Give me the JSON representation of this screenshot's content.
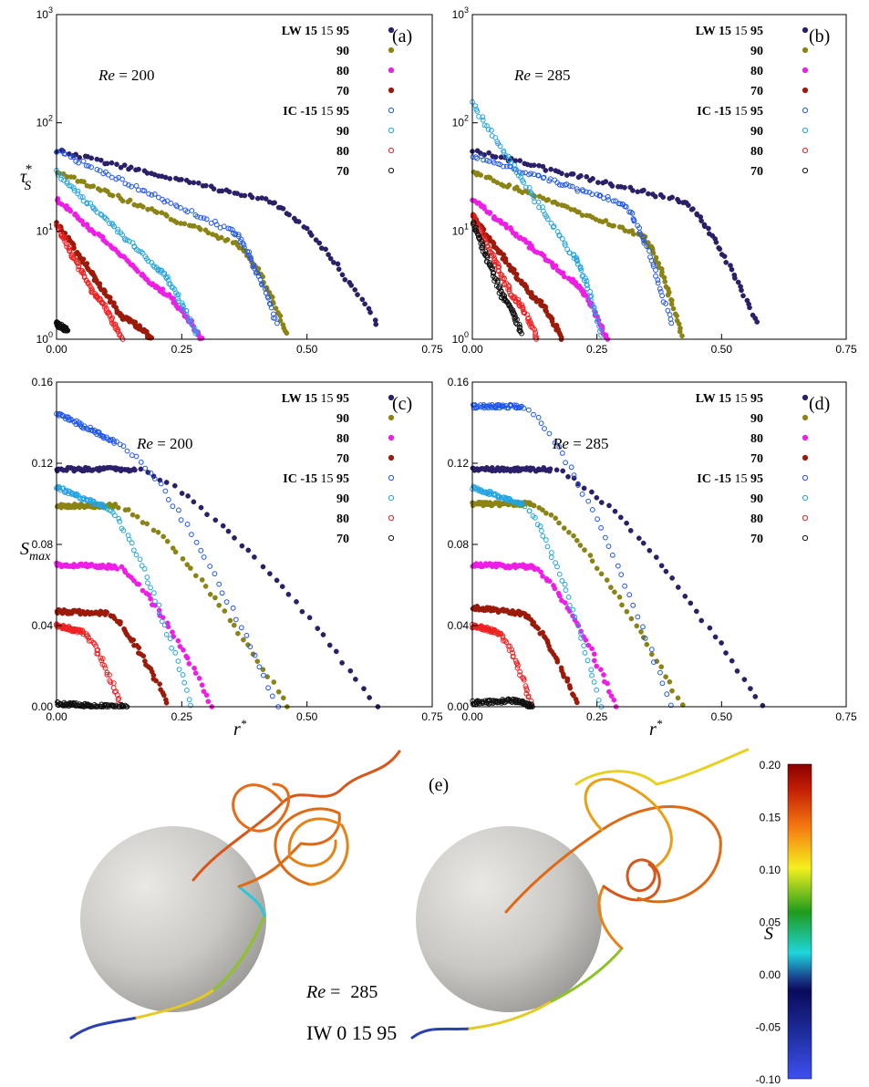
{
  "chart_data": [
    {
      "type": "scatter",
      "panel_label": "(a)",
      "annotation": "Re = 200",
      "annotation_parts": {
        "var": "Re",
        "eq": " = ",
        "val": "200"
      },
      "xlabel": "",
      "ylabel_main": "τ",
      "ylabel_sup": "*",
      "ylabel_sub": "S",
      "xlim": [
        0,
        0.75
      ],
      "ylim": [
        1,
        1000
      ],
      "yscale": "log",
      "x_ticks": [
        "0.00",
        "0.25",
        "0.50",
        "0.75"
      ],
      "y_ticks": [
        "1",
        "10",
        "100",
        "1000"
      ],
      "series": [
        {
          "name": "95",
          "group": "LW",
          "start": [
            0.0,
            55
          ],
          "pivot": [
            0.42,
            19
          ],
          "end": [
            0.64,
            1.4
          ]
        },
        {
          "name": "90",
          "group": "LW",
          "start": [
            0.0,
            35
          ],
          "pivot": [
            0.36,
            7.5
          ],
          "end": [
            0.46,
            1.1
          ]
        },
        {
          "name": "80",
          "group": "LW",
          "start": [
            0.0,
            20
          ],
          "pivot": [
            0.2,
            3.0
          ],
          "end": [
            0.29,
            1.0
          ]
        },
        {
          "name": "70",
          "group": "LW",
          "start": [
            0.0,
            12
          ],
          "pivot": [
            0.13,
            1.6
          ],
          "end": [
            0.19,
            1.0
          ]
        },
        {
          "name": "95",
          "group": "IC",
          "start": [
            0.0,
            55
          ],
          "pivot": [
            0.35,
            10
          ],
          "end": [
            0.44,
            1.4
          ]
        },
        {
          "name": "90",
          "group": "IC",
          "start": [
            0.0,
            35
          ],
          "pivot": [
            0.2,
            4.5
          ],
          "end": [
            0.28,
            1.1
          ]
        },
        {
          "name": "80",
          "group": "IC",
          "start": [
            0.0,
            11
          ],
          "pivot": [
            0.08,
            2.4
          ],
          "end": [
            0.13,
            1.0
          ]
        },
        {
          "name": "70",
          "group": "IC",
          "start": [
            0.0,
            1.4
          ],
          "pivot": [
            0.01,
            1.3
          ],
          "end": [
            0.02,
            1.2
          ]
        }
      ]
    },
    {
      "type": "scatter",
      "panel_label": "(b)",
      "annotation": "Re = 285",
      "annotation_parts": {
        "var": "Re",
        "eq": " = ",
        "val": "285"
      },
      "xlabel": "",
      "xlim": [
        0,
        0.75
      ],
      "ylim": [
        1,
        1000
      ],
      "yscale": "log",
      "x_ticks": [
        "0.00",
        "0.25",
        "0.50",
        "0.75"
      ],
      "y_ticks": [
        "1",
        "10",
        "100",
        "1000"
      ],
      "series": [
        {
          "name": "95",
          "group": "LW",
          "start": [
            0.0,
            55
          ],
          "pivot": [
            0.42,
            19
          ],
          "end": [
            0.57,
            1.4
          ]
        },
        {
          "name": "90",
          "group": "LW",
          "start": [
            0.0,
            35
          ],
          "pivot": [
            0.34,
            9
          ],
          "end": [
            0.42,
            1.1
          ]
        },
        {
          "name": "80",
          "group": "LW",
          "start": [
            0.0,
            20
          ],
          "pivot": [
            0.2,
            3.5
          ],
          "end": [
            0.27,
            1.0
          ]
        },
        {
          "name": "70",
          "group": "LW",
          "start": [
            0.0,
            14
          ],
          "pivot": [
            0.12,
            2.5
          ],
          "end": [
            0.18,
            1.0
          ]
        },
        {
          "name": "95",
          "group": "IC",
          "start": [
            0.0,
            50
          ],
          "pivot": [
            0.3,
            18
          ],
          "end": [
            0.4,
            1.4
          ]
        },
        {
          "name": "90",
          "group": "IC",
          "start": [
            0.0,
            150
          ],
          "pivot": [
            0.2,
            6
          ],
          "end": [
            0.26,
            1.1
          ]
        },
        {
          "name": "80",
          "group": "IC",
          "start": [
            0.0,
            14
          ],
          "pivot": [
            0.08,
            2.5
          ],
          "end": [
            0.13,
            1.0
          ]
        },
        {
          "name": "70",
          "group": "IC",
          "start": [
            0.0,
            12
          ],
          "pivot": [
            0.06,
            2.5
          ],
          "end": [
            0.1,
            1.1
          ]
        }
      ]
    },
    {
      "type": "scatter",
      "panel_label": "(c)",
      "annotation": "Re = 200",
      "annotation_parts": {
        "var": "Re",
        "eq": " = ",
        "val": "200"
      },
      "xlabel": "r*",
      "xlabel_main": "r",
      "xlabel_sup": "*",
      "ylabel_main": "S",
      "ylabel_sub": "max",
      "xlim": [
        0,
        0.75
      ],
      "ylim": [
        0,
        0.16
      ],
      "x_ticks": [
        "0.00",
        "0.25",
        "0.50",
        "0.75"
      ],
      "y_ticks": [
        "0.00",
        "0.04",
        "0.08",
        "0.12",
        "0.16"
      ],
      "series": [
        {
          "name": "95",
          "group": "LW",
          "start": [
            0.0,
            0.117
          ],
          "pivot": [
            0.16,
            0.117
          ],
          "end": [
            0.64,
            0.0
          ]
        },
        {
          "name": "90",
          "group": "LW",
          "start": [
            0.0,
            0.099
          ],
          "pivot": [
            0.12,
            0.099
          ],
          "end": [
            0.46,
            0.0
          ]
        },
        {
          "name": "80",
          "group": "LW",
          "start": [
            0.0,
            0.07
          ],
          "pivot": [
            0.12,
            0.069
          ],
          "end": [
            0.31,
            0.0
          ]
        },
        {
          "name": "70",
          "group": "LW",
          "start": [
            0.0,
            0.047
          ],
          "pivot": [
            0.1,
            0.046
          ],
          "end": [
            0.22,
            0.002
          ]
        },
        {
          "name": "95",
          "group": "IC",
          "start": [
            0.0,
            0.145
          ],
          "pivot": [
            0.12,
            0.13
          ],
          "end": [
            0.44,
            0.0
          ]
        },
        {
          "name": "90",
          "group": "IC",
          "start": [
            0.0,
            0.108
          ],
          "pivot": [
            0.1,
            0.098
          ],
          "end": [
            0.27,
            0.0
          ]
        },
        {
          "name": "80",
          "group": "IC",
          "start": [
            0.0,
            0.04
          ],
          "pivot": [
            0.05,
            0.037
          ],
          "end": [
            0.13,
            0.0
          ]
        },
        {
          "name": "70",
          "group": "IC",
          "start": [
            0.0,
            0.0015
          ],
          "pivot": [
            0.07,
            0.0005
          ],
          "end": [
            0.14,
            0.0
          ]
        }
      ]
    },
    {
      "type": "scatter",
      "panel_label": "(d)",
      "annotation": "Re = 285",
      "annotation_parts": {
        "var": "Re",
        "eq": " = ",
        "val": "285"
      },
      "xlabel": "r*",
      "xlabel_main": "r",
      "xlabel_sup": "*",
      "xlim": [
        0,
        0.75
      ],
      "ylim": [
        0,
        0.16
      ],
      "x_ticks": [
        "0.00",
        "0.25",
        "0.50",
        "0.75"
      ],
      "y_ticks": [
        "0.00",
        "0.04",
        "0.08",
        "0.12",
        "0.16"
      ],
      "series": [
        {
          "name": "95",
          "group": "LW",
          "start": [
            0.0,
            0.117
          ],
          "pivot": [
            0.16,
            0.117
          ],
          "end": [
            0.58,
            0.0
          ]
        },
        {
          "name": "90",
          "group": "LW",
          "start": [
            0.0,
            0.1
          ],
          "pivot": [
            0.12,
            0.1
          ],
          "end": [
            0.42,
            0.0
          ]
        },
        {
          "name": "80",
          "group": "LW",
          "start": [
            0.0,
            0.07
          ],
          "pivot": [
            0.12,
            0.069
          ],
          "end": [
            0.29,
            0.0
          ]
        },
        {
          "name": "70",
          "group": "LW",
          "start": [
            0.0,
            0.049
          ],
          "pivot": [
            0.1,
            0.046
          ],
          "end": [
            0.21,
            0.002
          ]
        },
        {
          "name": "95",
          "group": "IC",
          "start": [
            0.0,
            0.148
          ],
          "pivot": [
            0.1,
            0.148
          ],
          "end": [
            0.4,
            0.0
          ]
        },
        {
          "name": "90",
          "group": "IC",
          "start": [
            0.0,
            0.108
          ],
          "pivot": [
            0.1,
            0.1
          ],
          "end": [
            0.26,
            0.0
          ]
        },
        {
          "name": "80",
          "group": "IC",
          "start": [
            0.0,
            0.04
          ],
          "pivot": [
            0.05,
            0.037
          ],
          "end": [
            0.12,
            0.0
          ]
        },
        {
          "name": "70",
          "group": "IC",
          "start": [
            0.0,
            0.002
          ],
          "pivot": [
            0.08,
            0.003
          ],
          "end": [
            0.12,
            0.0
          ]
        }
      ]
    },
    {
      "type": "streamline-3d",
      "panel_label": "(e)",
      "annotation_parts": {
        "var": "Re",
        "eq": " = ",
        "val": "285"
      },
      "case_label": "IW 0 15 95",
      "colorbar": {
        "title": "S",
        "range": [
          -0.1,
          0.2
        ],
        "ticks": [
          "0.20",
          "0.15",
          "0.10",
          "0.05",
          "0.00",
          "-0.05",
          "-0.10"
        ]
      }
    }
  ],
  "legend": {
    "items": [
      {
        "prefix": "LW 15",
        "mid": "15",
        "val": "95",
        "color": "#2a1f68",
        "marker": "filled"
      },
      {
        "prefix": "",
        "mid": "",
        "val": "90",
        "color": "#8b8414",
        "marker": "filled"
      },
      {
        "prefix": "",
        "mid": "",
        "val": "80",
        "color": "#ee1ee6",
        "marker": "filled"
      },
      {
        "prefix": "",
        "mid": "",
        "val": "70",
        "color": "#9b1a0a",
        "marker": "filled"
      },
      {
        "prefix": "IC -15",
        "mid": "15",
        "val": "95",
        "color": "#1f56f0",
        "marker": "open"
      },
      {
        "prefix": "",
        "mid": "",
        "val": "90",
        "color": "#22a4e4",
        "marker": "open"
      },
      {
        "prefix": "",
        "mid": "",
        "val": "80",
        "color": "#f02020",
        "marker": "open"
      },
      {
        "prefix": "",
        "mid": "",
        "val": "70",
        "color": "#111111",
        "marker": "open"
      }
    ]
  },
  "colors": {
    "LW95": "#2a1f68",
    "LW90": "#8b8414",
    "LW80": "#ee1ee6",
    "LW70": "#9b1a0a",
    "IC95": "#1f56f0",
    "IC90": "#22a4e4",
    "IC80": "#f02020",
    "IC70": "#111111"
  }
}
